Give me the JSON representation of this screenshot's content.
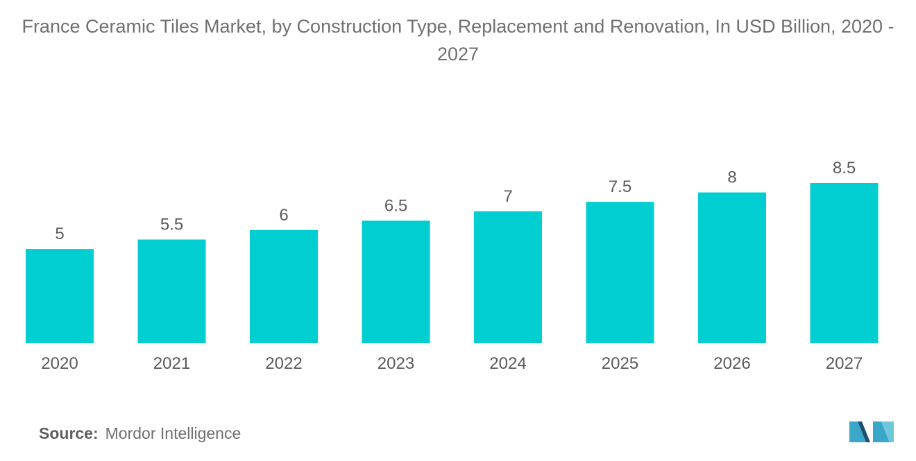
{
  "title": "France Ceramic Tiles Market, by Construction Type, Replacement and Renovation, In USD Billion, 2020 - 2027",
  "source": {
    "label": "Source:",
    "value": "Mordor Intelligence"
  },
  "logo": {
    "icon": "mordor-intelligence-logo",
    "colors": [
      "#3aa6c9",
      "#1e4f73",
      "#6fc8d9"
    ]
  },
  "colors": {
    "bar": "#00ced1",
    "text": "#5a5a5a",
    "title": "#707070"
  },
  "chart_data": {
    "type": "bar",
    "title": "France Ceramic Tiles Market, by Construction Type, Replacement and Renovation, In USD Billion, 2020 - 2027",
    "xlabel": "",
    "ylabel": "",
    "categories": [
      "2020",
      "2021",
      "2022",
      "2023",
      "2024",
      "2025",
      "2026",
      "2027"
    ],
    "values": [
      5,
      5.5,
      6,
      6.5,
      7,
      7.5,
      8,
      8.5
    ],
    "data_labels": [
      "5",
      "5.5",
      "6",
      "6.5",
      "7",
      "7.5",
      "8",
      "8.5"
    ],
    "ylim": [
      0,
      8.5
    ],
    "grid": false,
    "legend": "none"
  }
}
